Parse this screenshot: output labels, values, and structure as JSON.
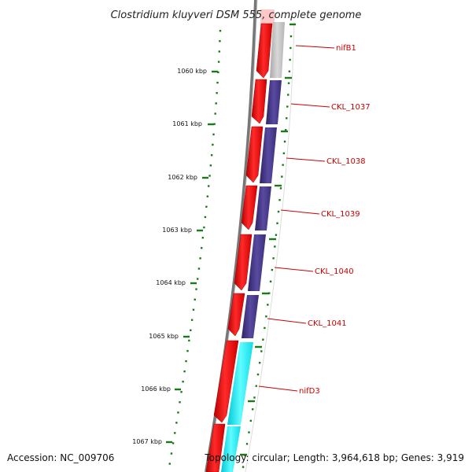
{
  "title": "Clostridium kluyveri DSM 555, complete genome",
  "footer": {
    "accession": "Accession: NC_009706",
    "topology": "Topology: circular; Length: 3,964,618 bp; Genes: 3,919"
  },
  "ruler_labels": [
    "1060 kbp",
    "1061 kbp",
    "1062 kbp",
    "1063 kbp",
    "1064 kbp",
    "1065 kbp",
    "1066 kbp",
    "1067 kbp"
  ],
  "genes": [
    {
      "name": "nifB1",
      "track_color": "#c0c0c0"
    },
    {
      "name": "CKL_1037",
      "track_color": "#4b3c8c"
    },
    {
      "name": "CKL_1038",
      "track_color": "#4b3c8c"
    },
    {
      "name": "CKL_1039",
      "track_color": "#4b3c8c"
    },
    {
      "name": "CKL_1040",
      "track_color": "#4b3c8c"
    },
    {
      "name": "CKL_1041",
      "track_color": "#4b3c8c"
    },
    {
      "name": "nifD3",
      "track_color": "#17f3f3"
    }
  ],
  "colors": {
    "strand_arrow": "#ff0000",
    "label": "#cc0000",
    "leader": "#cc0000",
    "tick": "#1a7a1a",
    "backbone": "#777777",
    "highlight": "#ffc8c8"
  }
}
